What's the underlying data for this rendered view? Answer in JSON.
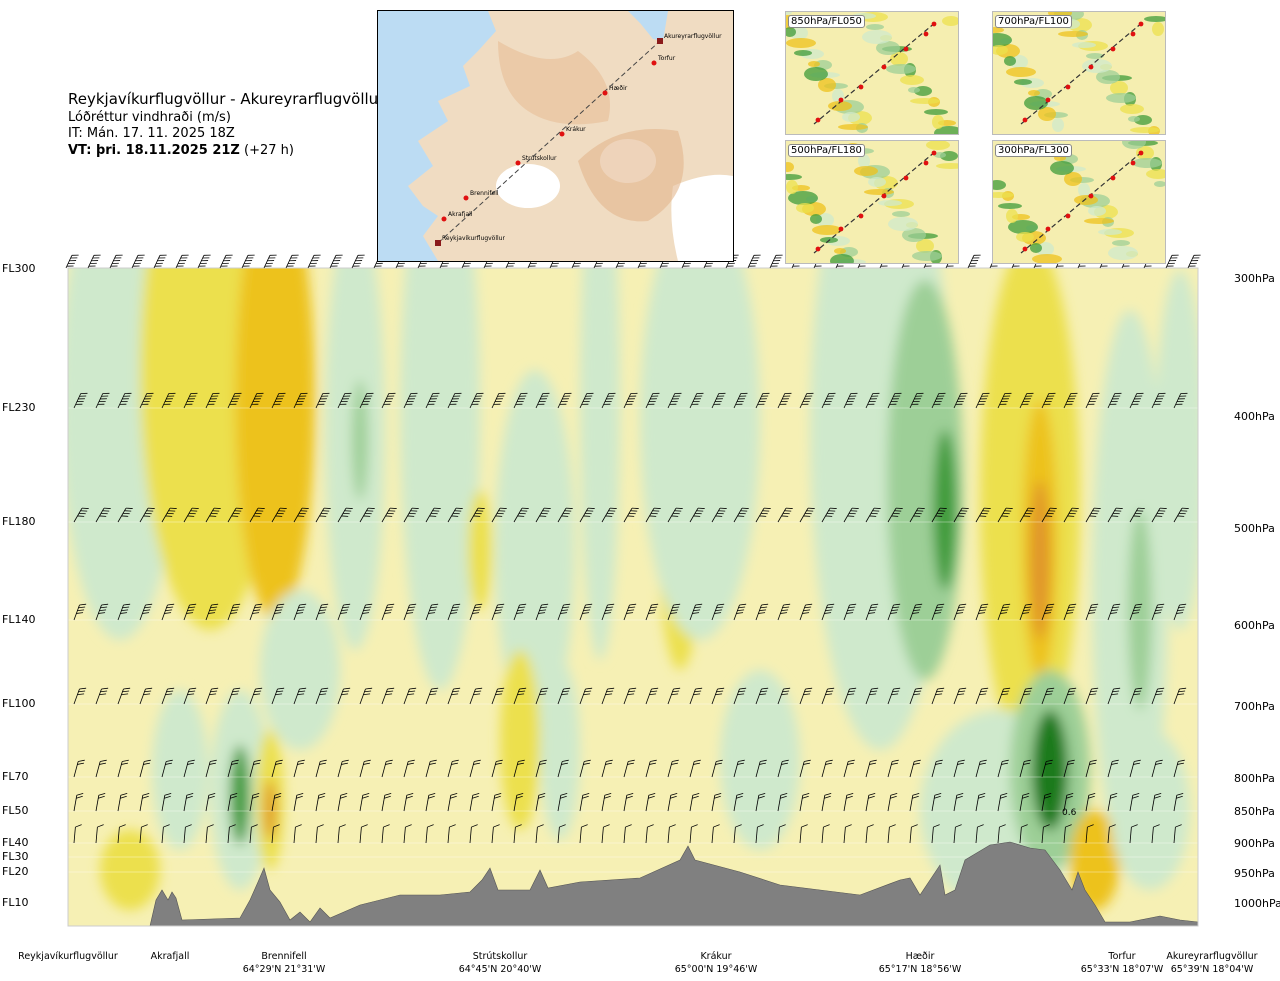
{
  "header": {
    "title": "Reykjavíkurflugvöllur - Akureyrarflugvöllur",
    "variable": "Lóðréttur vindhraði (m/s)",
    "issue_time": "IT: Mán. 17. 11. 2025 18Z",
    "valid_time_bold": "VT: þri. 18.11.2025 21Z",
    "valid_time_offset": "(+27 h)"
  },
  "levels": [
    {
      "fl": "FL300",
      "pressure": "300hPa"
    },
    {
      "fl": "FL230",
      "pressure": "400hPa"
    },
    {
      "fl": "FL180",
      "pressure": "500hPa"
    },
    {
      "fl": "FL140",
      "pressure": "600hPa"
    },
    {
      "fl": "FL100",
      "pressure": "700hPa"
    },
    {
      "fl": "FL70",
      "pressure": "800hPa"
    },
    {
      "fl": "FL50",
      "pressure": "850hPa"
    },
    {
      "fl": "FL40",
      "pressure": "900hPa"
    },
    {
      "fl": "FL30",
      "pressure": ""
    },
    {
      "fl": "FL20",
      "pressure": "950hPa"
    },
    {
      "fl": "FL10",
      "pressure": "1000hPa"
    }
  ],
  "waypoints": [
    {
      "name": "Reykjavíkurflugvöllur",
      "coord": ""
    },
    {
      "name": "Akrafjall",
      "coord": ""
    },
    {
      "name": "Brennifell",
      "coord": "64°29'N 21°31'W"
    },
    {
      "name": "Strútskollur",
      "coord": "64°45'N 20°40'W"
    },
    {
      "name": "Krákur",
      "coord": "65°00'N 19°46'W"
    },
    {
      "name": "Hæðir",
      "coord": "65°17'N 18°56'W"
    },
    {
      "name": "Torfur",
      "coord": "65°33'N 18°07'W"
    },
    {
      "name": "Akureyrarflugvöllur",
      "coord": "65°39'N 18°04'W"
    }
  ],
  "map_inset": {
    "labels": [
      "Akureyrarflugvöllur",
      "Torfur",
      "Hæðir",
      "Krákur",
      "Strútskollur",
      "Brennifell",
      "Akrafjall",
      "Reykjavíkurflugvöllur"
    ]
  },
  "panels": [
    {
      "label": "850hPa/FL050"
    },
    {
      "label": "700hPa/FL100"
    },
    {
      "label": "500hPa/FL180"
    },
    {
      "label": "300hPa/FL300"
    }
  ],
  "annotation": "0.6",
  "colors": {
    "green_light": "#cfe9cc",
    "green_mid": "#9dcf97",
    "green_dark": "#3f9b3a",
    "green_deep": "#1f7a1f",
    "yellow_light": "#f6f0b4",
    "yellow_mid": "#ece04e",
    "yellow_dark": "#edc21c",
    "orange": "#e0962a",
    "terrain": "#808080",
    "sea": "#bcdcf3"
  }
}
